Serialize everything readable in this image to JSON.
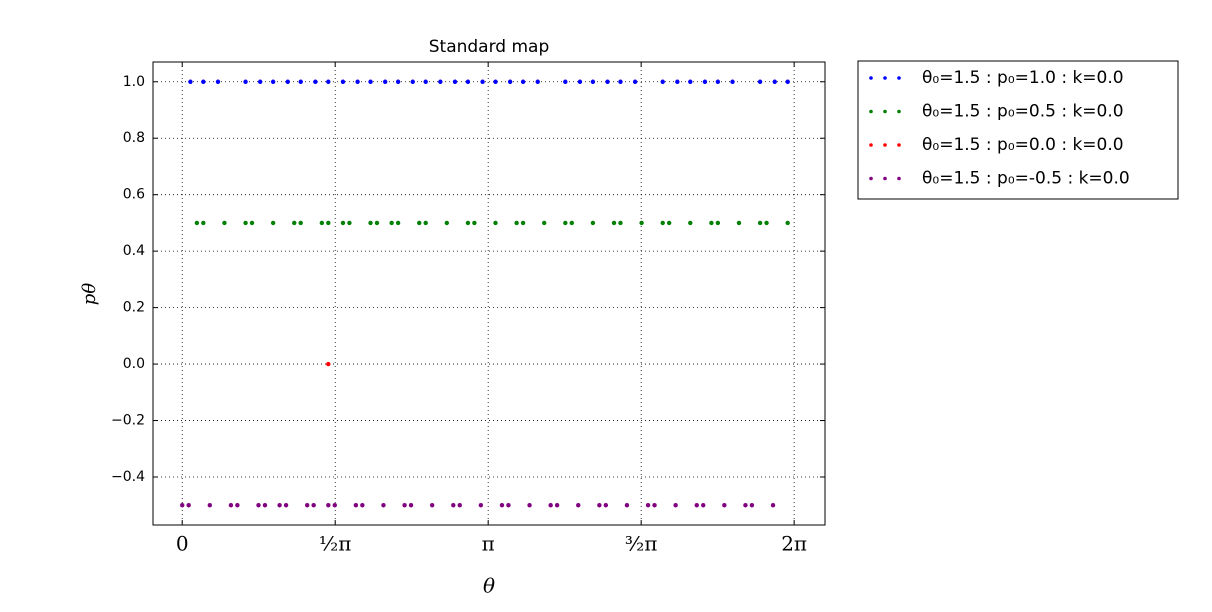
{
  "chart_data": {
    "type": "scatter",
    "title": "Standard map",
    "x_label": "θ",
    "y_label": "pθ",
    "xlim": [
      -0.3,
      6.6
    ],
    "ylim": [
      -0.57,
      1.07
    ],
    "xticks": [
      0,
      {
        "value": 1.5708,
        "label": "½π"
      },
      {
        "value": 3.1416,
        "label": "π"
      },
      {
        "value": 4.7124,
        "label": "³⁄₂π"
      },
      {
        "value": 6.2832,
        "label": "2π"
      }
    ],
    "yticks": [
      {
        "value": -0.4,
        "label": "−0.4"
      },
      {
        "value": -0.2,
        "label": "−0.2"
      },
      {
        "value": 0,
        "label": "0.0"
      },
      {
        "value": 0.2,
        "label": "0.2"
      },
      {
        "value": 0.4,
        "label": "0.4"
      },
      {
        "value": 0.6,
        "label": "0.6"
      },
      {
        "value": 0.8,
        "label": "0.8"
      },
      {
        "value": 1,
        "label": "1.0"
      }
    ],
    "grid": true,
    "legend": "outside upper right",
    "series": [
      {
        "name": "θ₀=1.5 : p₀=1.0 : k=0.0",
        "color": "#0000ff",
        "x": [
          1.5,
          2.5,
          3.5,
          4.5,
          5.5,
          0.2168,
          1.2168,
          2.2168,
          3.2168,
          4.2168,
          5.2168,
          6.2168,
          0.9336,
          1.9336,
          2.9336,
          3.9336,
          4.9336,
          5.9336,
          0.6504,
          1.6504,
          2.6504,
          3.6504,
          4.6504,
          5.6504,
          0.3672,
          1.3672,
          2.3672,
          3.3672,
          4.3672,
          5.3672,
          0.084,
          1.084,
          2.084,
          3.084,
          4.084,
          5.084,
          6.084,
          0.8008,
          1.8008,
          2.8008
        ],
        "values": [
          1,
          1,
          1,
          1,
          1,
          1,
          1,
          1,
          1,
          1,
          1,
          1,
          1,
          1,
          1,
          1,
          1,
          1,
          1,
          1,
          1,
          1,
          1,
          1,
          1,
          1,
          1,
          1,
          1,
          1,
          1,
          1,
          1,
          1,
          1,
          1,
          1,
          1,
          1,
          1
        ]
      },
      {
        "name": "θ₀=1.5 : p₀=0.5 : k=0.0",
        "color": "#008000",
        "x": [
          1.5,
          2,
          2.5,
          3,
          3.5,
          4,
          4.5,
          5,
          5.5,
          6,
          0.2168,
          0.7168,
          1.2168,
          1.7168,
          2.2168,
          2.7168,
          3.2168,
          3.7168,
          4.2168,
          4.7168,
          5.2168,
          5.7168,
          6.2168,
          0.4336,
          0.9336,
          1.4336,
          1.9336,
          2.4336,
          2.9336,
          3.4336,
          3.9336,
          4.4336,
          4.9336,
          5.4336,
          5.9336,
          0.1504,
          0.6504,
          1.1504,
          1.6504,
          2.1504
        ],
        "values": [
          0.5,
          0.5,
          0.5,
          0.5,
          0.5,
          0.5,
          0.5,
          0.5,
          0.5,
          0.5,
          0.5,
          0.5,
          0.5,
          0.5,
          0.5,
          0.5,
          0.5,
          0.5,
          0.5,
          0.5,
          0.5,
          0.5,
          0.5,
          0.5,
          0.5,
          0.5,
          0.5,
          0.5,
          0.5,
          0.5,
          0.5,
          0.5,
          0.5,
          0.5,
          0.5,
          0.5,
          0.5,
          0.5,
          0.5,
          0.5
        ]
      },
      {
        "name": "θ₀=1.5 : p₀=0.0 : k=0.0",
        "color": "#ff0000",
        "x": [
          1.5
        ],
        "values": [
          0
        ]
      },
      {
        "name": "θ₀=1.5 : p₀=-0.5 : k=0.0",
        "color": "#800080",
        "x": [
          1.5,
          1,
          0.5,
          0,
          5.7832,
          5.2832,
          4.7832,
          4.2832,
          3.7832,
          3.2832,
          2.7832,
          2.2832,
          1.7832,
          1.2832,
          0.7832,
          0.2832,
          6.0664,
          5.5664,
          5.0664,
          4.5664,
          4.0664,
          3.5664,
          3.0664,
          2.5664,
          2.0664,
          1.5664,
          1.0664,
          0.5664,
          0.0664,
          5.8496,
          5.3496,
          4.8496,
          4.3496,
          3.8496,
          3.3496,
          2.8496,
          2.3496,
          1.8496,
          1.3496,
          0.8496
        ],
        "values": [
          -0.5,
          -0.5,
          -0.5,
          -0.5,
          -0.5,
          -0.5,
          -0.5,
          -0.5,
          -0.5,
          -0.5,
          -0.5,
          -0.5,
          -0.5,
          -0.5,
          -0.5,
          -0.5,
          -0.5,
          -0.5,
          -0.5,
          -0.5,
          -0.5,
          -0.5,
          -0.5,
          -0.5,
          -0.5,
          -0.5,
          -0.5,
          -0.5,
          -0.5,
          -0.5,
          -0.5,
          -0.5,
          -0.5,
          -0.5,
          -0.5,
          -0.5,
          -0.5,
          -0.5,
          -0.5,
          -0.5
        ]
      }
    ]
  }
}
